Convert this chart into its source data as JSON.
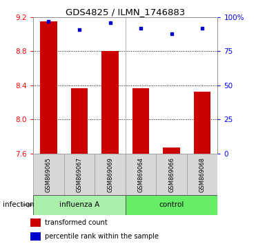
{
  "title": "GDS4825 / ILMN_1746883",
  "samples": [
    "GSM869065",
    "GSM869067",
    "GSM869069",
    "GSM869064",
    "GSM869066",
    "GSM869068"
  ],
  "red_values": [
    9.15,
    8.37,
    8.8,
    8.37,
    7.67,
    8.33
  ],
  "blue_values_pct": [
    97,
    91,
    96,
    92,
    88,
    92
  ],
  "baseline": 7.6,
  "ylim": [
    7.6,
    9.2
  ],
  "yticks": [
    7.6,
    8.0,
    8.4,
    8.8,
    9.2
  ],
  "right_yticks": [
    0,
    25,
    50,
    75,
    100
  ],
  "right_ylim": [
    0,
    100
  ],
  "group1_label": "influenza A",
  "group2_label": "control",
  "group1_indices": [
    0,
    1,
    2
  ],
  "group2_indices": [
    3,
    4,
    5
  ],
  "group1_color": "#aaf0aa",
  "group2_color": "#66ee66",
  "bar_color": "#cc0000",
  "dot_color": "#0000cc",
  "bar_width": 0.55,
  "bg_color": "#ffffff",
  "sample_box_color": "#d8d8d8",
  "legend_red_label": "transformed count",
  "legend_blue_label": "percentile rank within the sample",
  "infection_label": "infection"
}
